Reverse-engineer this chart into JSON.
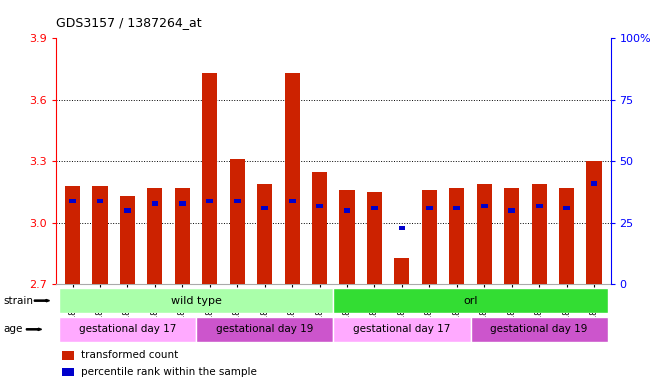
{
  "title": "GDS3157 / 1387264_at",
  "samples": [
    "GSM187669",
    "GSM187670",
    "GSM187671",
    "GSM187672",
    "GSM187673",
    "GSM187674",
    "GSM187675",
    "GSM187676",
    "GSM187677",
    "GSM187678",
    "GSM187679",
    "GSM187680",
    "GSM187681",
    "GSM187682",
    "GSM187683",
    "GSM187684",
    "GSM187685",
    "GSM187686",
    "GSM187687",
    "GSM187688"
  ],
  "red_values": [
    3.18,
    3.18,
    3.13,
    3.17,
    3.17,
    3.73,
    3.31,
    3.19,
    3.73,
    3.25,
    3.16,
    3.15,
    2.83,
    3.16,
    3.17,
    3.19,
    3.17,
    3.19,
    3.17,
    3.3
  ],
  "blue_pct": [
    33,
    33,
    29,
    32,
    32,
    33,
    33,
    30,
    33,
    31,
    29,
    30,
    22,
    30,
    30,
    31,
    29,
    31,
    30,
    40
  ],
  "baseline": 2.7,
  "ylim_left": [
    2.7,
    3.9
  ],
  "ylim_right": [
    0,
    100
  ],
  "yticks_left": [
    2.7,
    3.0,
    3.3,
    3.6,
    3.9
  ],
  "yticks_right": [
    0,
    25,
    50,
    75,
    100
  ],
  "ytick_labels_right": [
    "0",
    "25",
    "50",
    "75",
    "100%"
  ],
  "grid_values": [
    3.0,
    3.3,
    3.6
  ],
  "strain_groups": [
    {
      "label": "wild type",
      "start": 0,
      "end": 9,
      "color": "#aaffaa"
    },
    {
      "label": "orl",
      "start": 10,
      "end": 19,
      "color": "#33dd33"
    }
  ],
  "age_groups": [
    {
      "label": "gestational day 17",
      "start": 0,
      "end": 4,
      "color": "#ffaaff"
    },
    {
      "label": "gestational day 19",
      "start": 5,
      "end": 9,
      "color": "#cc55cc"
    },
    {
      "label": "gestational day 17",
      "start": 10,
      "end": 14,
      "color": "#ffaaff"
    },
    {
      "label": "gestational day 19",
      "start": 15,
      "end": 19,
      "color": "#cc55cc"
    }
  ],
  "bar_color_red": "#cc2200",
  "bar_color_blue": "#0000cc",
  "bar_width": 0.55,
  "legend_items": [
    {
      "color": "#cc2200",
      "label": "transformed count"
    },
    {
      "color": "#0000cc",
      "label": "percentile rank within the sample"
    }
  ],
  "strain_label_color": "#aaffaa",
  "strain_label2_color": "#33dd33",
  "bg_color": "#f0f0f0"
}
